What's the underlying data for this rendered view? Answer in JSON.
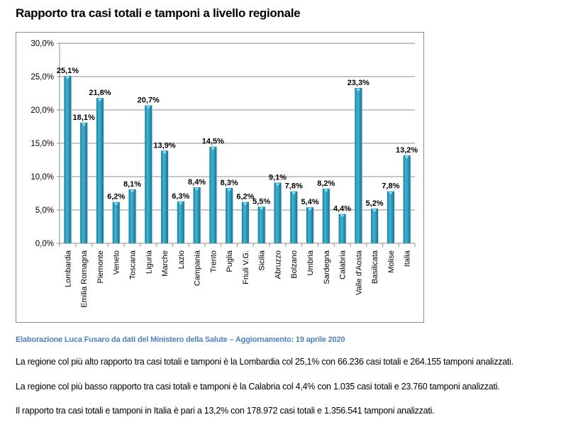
{
  "page": {
    "title": "Rapporto tra casi totali e tamponi a livello regionale",
    "source": "Elaborazione  Luca Fusaro da dati del Ministero della Salute – Aggiornamento: 19 aprile  2020",
    "paragraphs": [
      "La regione col più alto rapporto tra casi totali e tamponi è la Lombardia col 25,1%  con 66.236  casi totali e 264.155  tamponi analizzati.",
      "La regione col più basso rapporto tra casi totali e tamponi è la Calabria col 4,4% con 1.035 casi totali e 23.760  tamponi analizzati.",
      "Il rapporto tra casi totali e tamponi in Italia è pari a 13,2% con 178.972  casi totali e 1.356.541  tamponi analizzati."
    ]
  },
  "chart_data": {
    "type": "bar",
    "title": "Rapporto tra casi totali e tamponi a livello regionale",
    "xlabel": "",
    "ylabel": "",
    "ylim": [
      0,
      30
    ],
    "yticks": [
      0,
      5,
      10,
      15,
      20,
      25,
      30
    ],
    "ytick_labels": [
      "0,0%",
      "5,0%",
      "10,0%",
      "15,0%",
      "20,0%",
      "25,0%",
      "30,0%"
    ],
    "grid": true,
    "legend": "none",
    "bar_color": "#31a2c4",
    "categories": [
      "Lombardia",
      "Emilia Romagna",
      "Piemonte",
      "Veneto",
      "Toscana",
      "Liguria",
      "Marche",
      "Lazio",
      "Campania",
      "Trento",
      "Puglia",
      "Friuli V.G.",
      "Sicilia",
      "Abruzzo",
      "Bolzano",
      "Umbria",
      "Sardegna",
      "Calabria",
      "Valle d'Aosta",
      "Basilicata",
      "Molise",
      "Italia"
    ],
    "values": [
      25.1,
      18.1,
      21.8,
      6.2,
      8.1,
      20.7,
      13.9,
      6.3,
      8.4,
      14.5,
      8.3,
      6.2,
      5.5,
      9.1,
      7.8,
      5.4,
      8.2,
      4.4,
      23.3,
      5.2,
      7.8,
      13.2
    ],
    "data_labels": [
      "25,1%",
      "18,1%",
      "21,8%",
      "6,2%",
      "8,1%",
      "20,7%",
      "13,9%",
      "6,3%",
      "8,4%",
      "14,5%",
      "8,3%",
      "6,2%",
      "5,5%",
      "9,1%",
      "7,8%",
      "5,4%",
      "8,2%",
      "4,4%",
      "23,3%",
      "5,2%",
      "7,8%",
      "13,2%"
    ]
  }
}
